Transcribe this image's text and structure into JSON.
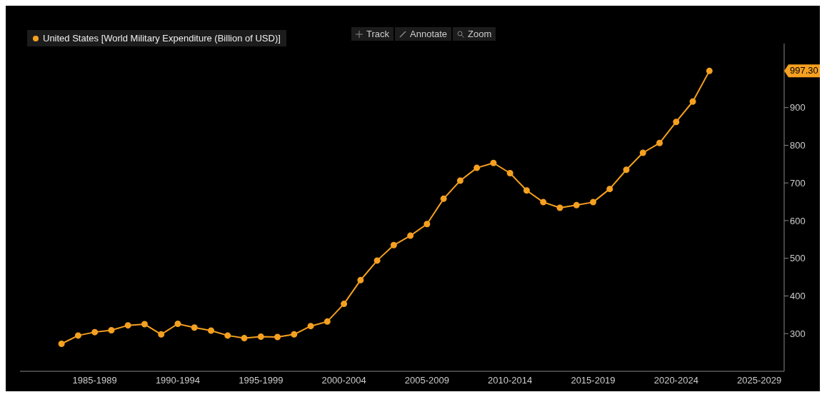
{
  "chart_data": {
    "type": "line",
    "categories": [
      null,
      null,
      "1985-1989",
      null,
      null,
      null,
      null,
      "1990-1994",
      null,
      null,
      null,
      null,
      "1995-1999",
      null,
      null,
      null,
      null,
      "2000-2004",
      null,
      null,
      null,
      null,
      "2005-2009",
      null,
      null,
      null,
      null,
      "2010-2014",
      null,
      null,
      null,
      null,
      "2015-2019",
      null,
      null,
      null,
      null,
      "2020-2024",
      null,
      null,
      null,
      null,
      "2025-2029",
      null
    ],
    "series": [
      {
        "name": "United States [World Military Expenditure (Billion of USD)]",
        "color": "#f5a020",
        "values": [
          273,
          295,
          304,
          309,
          322,
          325,
          298,
          326,
          316,
          308,
          295,
          288,
          292,
          291,
          298,
          320,
          332,
          379,
          442,
          494,
          535,
          560,
          591,
          658,
          706,
          740,
          753,
          726,
          680,
          649,
          634,
          641,
          649,
          684,
          735,
          780,
          806,
          862,
          916,
          997.3,
          null,
          null,
          null,
          null
        ]
      }
    ],
    "ylim": [
      200,
      1070
    ],
    "yticks": [
      300,
      400,
      500,
      600,
      700,
      800,
      900
    ],
    "annotations": [
      "997.30",
      "Track",
      "Annotate",
      "Zoom"
    ],
    "legend": "top left",
    "grid": false,
    "marker": "circle",
    "line_style": "solid"
  }
}
